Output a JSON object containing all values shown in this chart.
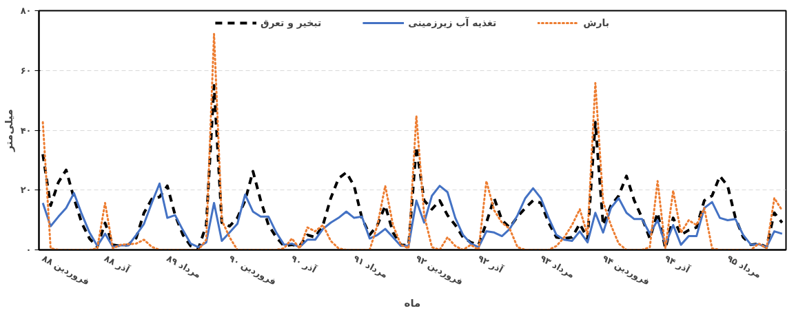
{
  "chart_data": {
    "type": "line",
    "xlabel": "ماه",
    "ylabel": "میلی‌متر",
    "categories": [
      "فروردین ۸۸",
      null,
      null,
      null,
      null,
      null,
      null,
      null,
      "آذر ۸۸",
      null,
      null,
      null,
      null,
      null,
      null,
      null,
      "مرداد ۸۹",
      null,
      null,
      null,
      null,
      null,
      null,
      null,
      "فروردین ۹۰",
      null,
      null,
      null,
      null,
      null,
      null,
      null,
      "آذر ۹۰",
      null,
      null,
      null,
      null,
      null,
      null,
      null,
      "مرداد ۹۱",
      null,
      null,
      null,
      null,
      null,
      null,
      null,
      "فروردین ۹۲",
      null,
      null,
      null,
      null,
      null,
      null,
      null,
      "آذر ۹۲",
      null,
      null,
      null,
      null,
      null,
      null,
      null,
      "مرداد ۹۳",
      null,
      null,
      null,
      null,
      null,
      null,
      null,
      "فروردین ۹۴",
      null,
      null,
      null,
      null,
      null,
      null,
      null,
      "آذر ۹۴",
      null,
      null,
      null,
      null,
      null,
      null,
      null,
      "مرداد ۹۵",
      null,
      null,
      null,
      null,
      null,
      null,
      null
    ],
    "series": [
      {
        "name": "تبخیر و تعرق",
        "color": "#000000",
        "line_style": "dashed",
        "values": [
          32,
          14.8,
          22.6,
          26.7,
          17.3,
          9,
          3.8,
          1,
          9,
          1.7,
          1.3,
          1.7,
          4,
          12.4,
          17,
          17.7,
          21.4,
          11.6,
          5,
          1.3,
          0.5,
          8.3,
          55,
          9.1,
          7.9,
          10.7,
          16.5,
          26.3,
          16.5,
          8.3,
          4.2,
          1.3,
          1.7,
          1.3,
          5,
          4.2,
          8.3,
          17.3,
          23.9,
          25.9,
          21.4,
          10.7,
          5,
          8.3,
          14.8,
          5.8,
          1.7,
          1.5,
          34.5,
          16.5,
          13.6,
          16.5,
          11.6,
          8.3,
          4.2,
          2.5,
          1.7,
          9.1,
          17.3,
          9.9,
          7.5,
          11.1,
          14,
          16.5,
          15.7,
          9.1,
          4.2,
          3.8,
          4.2,
          8.7,
          3.8,
          42.7,
          8.3,
          14.8,
          18.1,
          24.7,
          16.5,
          10.7,
          3.8,
          12.4,
          0.5,
          10.7,
          5,
          6.6,
          7.5,
          16.5,
          18.1,
          24.7,
          21.4,
          10.7,
          4.2,
          1.7,
          2.1,
          0.9,
          12.4,
          9.1
        ]
      },
      {
        "name": "تغذیه آب زیرزمینی",
        "color": "#4472c4",
        "line_style": "solid",
        "values": [
          15.7,
          7.9,
          11.1,
          14,
          19,
          12,
          5.8,
          1.3,
          5.4,
          1,
          1.5,
          1.5,
          5,
          8.7,
          15.7,
          22.2,
          10.7,
          11.6,
          6.6,
          2.1,
          0.9,
          2.5,
          15.7,
          3,
          5.8,
          8.7,
          18.5,
          12.8,
          11.1,
          11.1,
          5.8,
          1.7,
          2.1,
          0.9,
          3.4,
          3.4,
          7,
          9.1,
          10.7,
          12.8,
          10.7,
          11.1,
          3.8,
          5,
          7,
          4.2,
          1.3,
          1.3,
          16.5,
          9.1,
          18.1,
          21.4,
          19.3,
          10.7,
          5,
          2.1,
          0.9,
          6.2,
          5.8,
          4.6,
          7,
          11.6,
          17.3,
          20.6,
          17.3,
          10.7,
          5,
          3.4,
          3,
          6.2,
          2.5,
          12.4,
          5.8,
          14,
          17.3,
          12.4,
          10.3,
          10.3,
          5.4,
          9.9,
          1.7,
          8.3,
          1.7,
          4.6,
          4.6,
          14,
          16,
          10.7,
          9.9,
          10.3,
          5,
          1.7,
          1.9,
          0.9,
          6.2,
          5.4
        ]
      },
      {
        "name": "بارش",
        "color": "#ed7d31",
        "line_style": "dotted",
        "values": [
          42.7,
          0.5,
          0,
          0,
          0,
          0,
          0,
          0.5,
          15.7,
          0.5,
          1.7,
          1.9,
          2.1,
          3.4,
          1,
          0,
          0,
          0,
          0,
          0,
          0,
          3.4,
          72.2,
          9.9,
          4.2,
          0,
          0,
          0,
          0,
          0,
          0,
          0.5,
          3.8,
          0.5,
          7.5,
          6.2,
          8.3,
          3,
          0.5,
          0,
          0,
          0,
          0,
          8.3,
          21.4,
          8.3,
          1.7,
          0.5,
          44.8,
          11.6,
          0.9,
          0,
          4.2,
          1.3,
          0,
          1.7,
          0,
          23,
          13.2,
          9.1,
          7,
          0.9,
          0,
          0,
          0,
          0,
          1.3,
          4.2,
          8.3,
          13.6,
          5,
          55.8,
          16,
          8.3,
          2.1,
          0,
          0,
          0,
          0.9,
          23,
          0.5,
          19.8,
          5.8,
          9.9,
          8.3,
          14,
          0.5,
          0,
          0,
          0,
          0,
          0,
          2.1,
          0.5,
          17.3,
          13.2
        ]
      }
    ],
    "ylim": [
      0,
      80
    ],
    "yticks": [
      {
        "value": 0,
        "label": "۰"
      },
      {
        "value": 20,
        "label": "۲۰"
      },
      {
        "value": 40,
        "label": "۴۰"
      },
      {
        "value": 60,
        "label": "۶۰"
      },
      {
        "value": 80,
        "label": "۸۰"
      }
    ],
    "grid": "y",
    "legend": "top",
    "marker": "none"
  }
}
